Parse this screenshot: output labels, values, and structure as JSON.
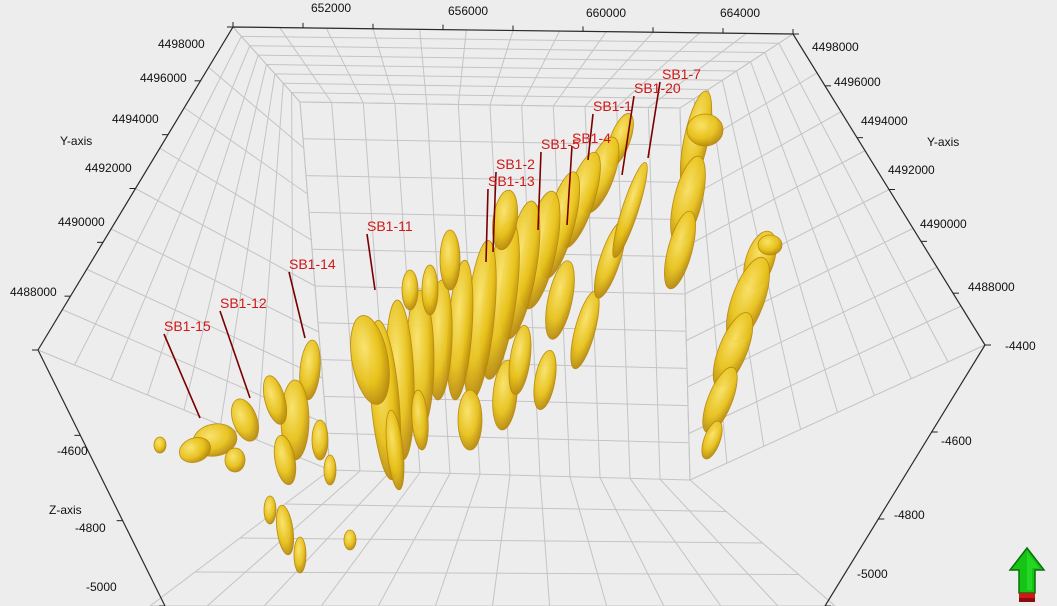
{
  "viewer": {
    "axes": {
      "x_ticks": [
        "652000",
        "656000",
        "660000",
        "664000"
      ],
      "y_title_left": "Y-axis",
      "y_title_right": "Y-axis",
      "y_ticks_left": [
        "4498000",
        "4496000",
        "4494000",
        "4492000",
        "4490000",
        "4488000"
      ],
      "y_ticks_right": [
        "4498000",
        "4496000",
        "4494000",
        "4492000",
        "4490000",
        "4488000"
      ],
      "z_title": "Z-axis",
      "z_ticks_left": [
        "-4600",
        "-4800",
        "-5000"
      ],
      "z_ticks_right": [
        "-4400",
        "-4600",
        "-4800",
        "-5000"
      ]
    },
    "wells": [
      "SB1-7",
      "SB1-20",
      "SB1-1",
      "SB1-4",
      "SB1-5",
      "SB1-2",
      "SB1-13",
      "SB1-11",
      "SB1-14",
      "SB1-12",
      "SB1-15"
    ],
    "colors": {
      "background": "#ededed",
      "grid": "#c4c4c4",
      "body_fill": "#e8c21a",
      "body_edge": "#b8860b",
      "well_line": "#7a0000",
      "well_label": "#d01818"
    },
    "nav_icon": "green-up-arrow-icon"
  }
}
